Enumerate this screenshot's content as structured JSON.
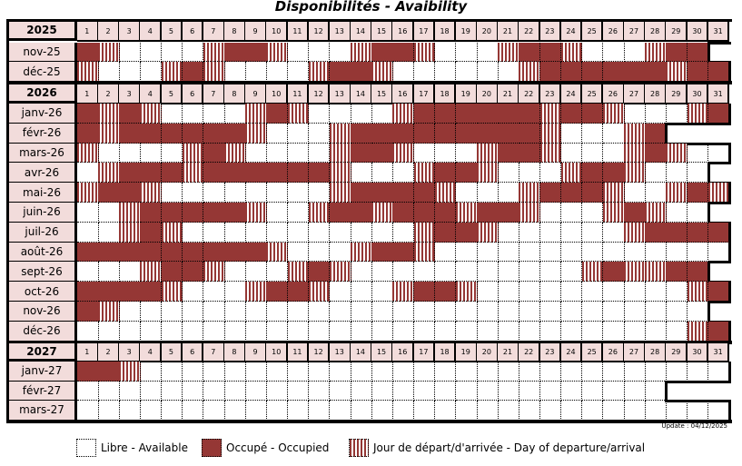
{
  "title": "Disponibilités - Avaibility",
  "colors": {
    "occupied": "#953735",
    "header": "#f2dcdb",
    "free": "#ffffff"
  },
  "cell_codes": {
    ".": "free",
    "O": "occupied",
    "S": "departure/arrival",
    "x": "no such day"
  },
  "years": [
    {
      "label": "2025",
      "months": [
        {
          "label": "nov-25",
          "days": "OS....SOOS...SOOS...SOOS...SOOx"
        },
        {
          "label": "déc-25",
          "days": "S...SOS....SOOS......SOOOOOOSOO"
        }
      ]
    },
    {
      "label": "2026",
      "months": [
        {
          "label": "janv-26",
          "days": "OSOS....SOS....SOOOOOOSOOS...SO"
        },
        {
          "label": "févr-26",
          "days": "OSOOOOOOS...SOOOOOOOOOS...SOxxx"
        },
        {
          "label": "mars-26",
          "days": "S....SOS....SOOS...SOOS...SOS.."
        },
        {
          "label": "avr-26",
          "days": ".SOOOSOOOOOOS...SOOS...SOOS...x"
        },
        {
          "label": "mai-26",
          "days": "SOOS........SOOOOS...SOOOS..SOS"
        },
        {
          "label": "juin-26",
          "days": "..SOOOOOS..SOOSOOOSOOS...SOS..x"
        },
        {
          "label": "juil-26",
          "days": "..SOS...........SOOS......SOOOO"
        },
        {
          "label": "août-26",
          "days": "OOOOOOOOOS...SOOS.............."
        },
        {
          "label": "sept-26",
          "days": "...SOOS...SOS...........SOSSOOx"
        },
        {
          "label": "oct-26",
          "days": "OOOOS...SOOS...SOOS..........SO"
        },
        {
          "label": "nov-26",
          "days": "OS............................x"
        },
        {
          "label": "déc-26",
          "days": ".............................SO"
        }
      ]
    },
    {
      "label": "2027",
      "months": [
        {
          "label": "janv-27",
          "days": "OOS............................"
        },
        {
          "label": "févr-27",
          "days": "............................xxx"
        },
        {
          "label": "mars-27",
          "days": "..............................."
        }
      ]
    }
  ],
  "day_numbers": [
    "1",
    "2",
    "3",
    "4",
    "5",
    "6",
    "7",
    "8",
    "9",
    "10",
    "11",
    "12",
    "13",
    "14",
    "15",
    "16",
    "17",
    "18",
    "19",
    "20",
    "21",
    "22",
    "23",
    "24",
    "25",
    "26",
    "27",
    "28",
    "29",
    "30",
    "31"
  ],
  "update": "Update : 04/12/2025",
  "legend": [
    {
      "code": ".",
      "label": "Libre - Available"
    },
    {
      "code": "O",
      "label": "Occupé - Occupied"
    },
    {
      "code": "S",
      "label": "Jour de départ/d'arrivée - Day of departure/arrival"
    }
  ]
}
